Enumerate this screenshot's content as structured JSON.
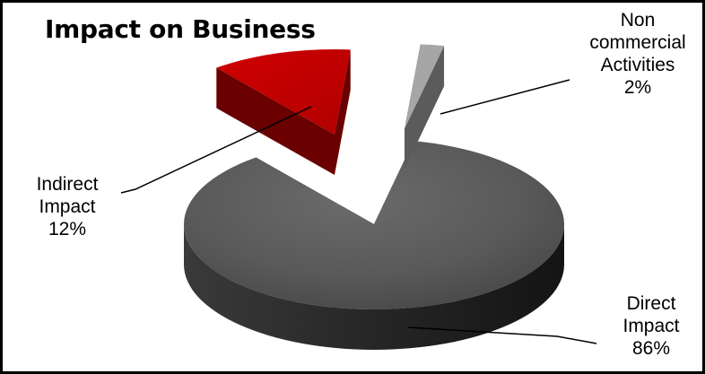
{
  "chart_data": {
    "type": "pie",
    "title": "Impact on Business",
    "style": "3d-exploded",
    "slices": [
      {
        "name_lines": [
          "Direct",
          "Impact"
        ],
        "value": 86,
        "value_label": "86%",
        "color": "#555555"
      },
      {
        "name_lines": [
          "Indirect",
          "Impact"
        ],
        "value": 12,
        "value_label": "12%",
        "color": "#c00000"
      },
      {
        "name_lines": [
          "Non",
          "commercial",
          "Activities"
        ],
        "value": 2,
        "value_label": "2%",
        "color": "#a6a6a6"
      }
    ]
  }
}
